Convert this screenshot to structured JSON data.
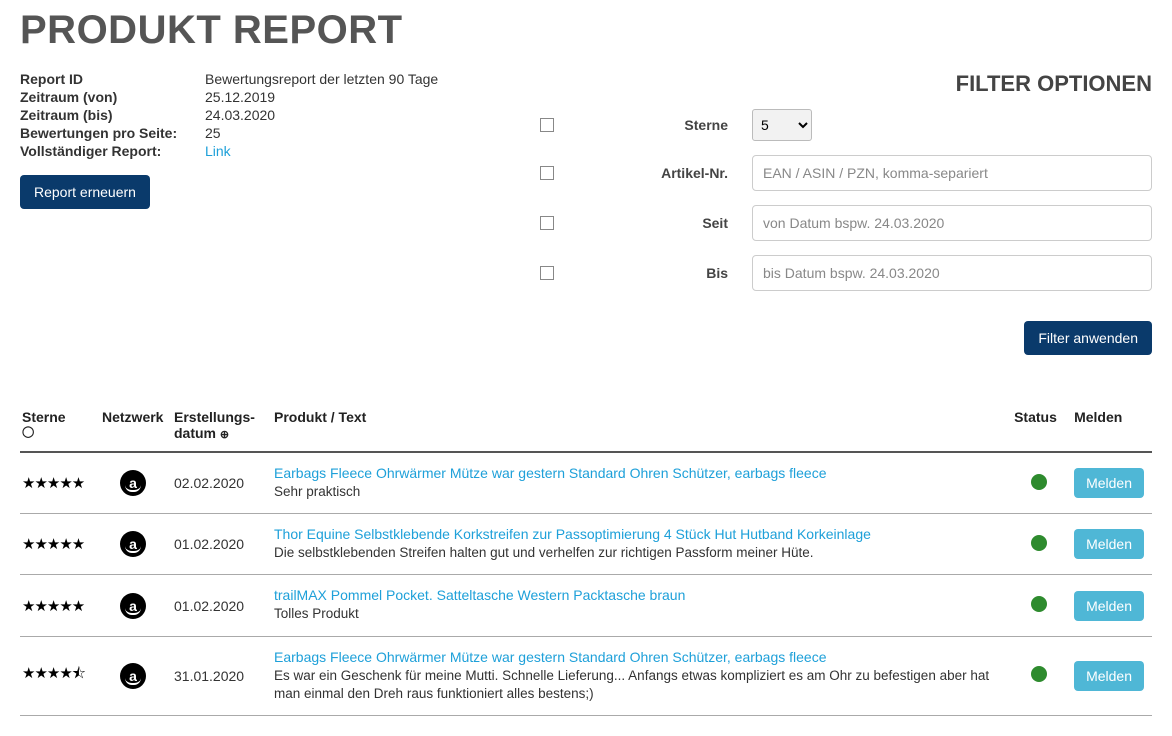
{
  "page_title": "PRODUKT REPORT",
  "meta": {
    "report_id_label": "Report ID",
    "report_id_value": "Bewertungsreport der letzten 90 Tage",
    "from_label": "Zeitraum (von)",
    "from_value": "25.12.2019",
    "to_label": "Zeitraum (bis)",
    "to_value": "24.03.2020",
    "per_page_label": "Bewertungen pro Seite:",
    "per_page_value": "25",
    "full_report_label": "Vollständiger Report:",
    "full_report_link": "Link",
    "refresh_button": "Report erneuern"
  },
  "filter": {
    "title": "FILTER OPTIONEN",
    "stars_label": "Sterne",
    "stars_value": "5",
    "article_label": "Artikel-Nr.",
    "article_placeholder": "EAN / ASIN / PZN, komma-separiert",
    "since_label": "Seit",
    "since_placeholder": "von Datum bspw. 24.03.2020",
    "until_label": "Bis",
    "until_placeholder": "bis Datum bspw. 24.03.2020",
    "apply_button": "Filter anwenden"
  },
  "table": {
    "headers": {
      "stars": "Sterne",
      "network": "Netzwerk",
      "created_l1": "Erstellungs-",
      "created_l2": "datum",
      "product": "Produkt / Text",
      "status": "Status",
      "report": "Melden"
    },
    "rows": [
      {
        "stars": "★★★★★",
        "network": "a",
        "date": "02.02.2020",
        "title": "Earbags Fleece Ohrwärmer Mütze war gestern Standard Ohren Schützer, earbags fleece",
        "text": "Sehr praktisch",
        "status_color": "#2e8b2e",
        "report_btn": "Melden"
      },
      {
        "stars": "★★★★★",
        "network": "a",
        "date": "01.02.2020",
        "title": "Thor Equine Selbstklebende Korkstreifen zur Passoptimierung 4 Stück Hut Hutband Korkeinlage",
        "text": "Die selbstklebenden Streifen halten gut und verhelfen zur richtigen Passform meiner Hüte.",
        "status_color": "#2e8b2e",
        "report_btn": "Melden"
      },
      {
        "stars": "★★★★★",
        "network": "a",
        "date": "01.02.2020",
        "title": "trailMAX Pommel Pocket. Satteltasche Western Packtasche braun",
        "text": "Tolles Produkt",
        "status_color": "#2e8b2e",
        "report_btn": "Melden"
      },
      {
        "stars": "★★★★⯪",
        "network": "a",
        "date": "31.01.2020",
        "title": "Earbags Fleece Ohrwärmer Mütze war gestern Standard Ohren Schützer, earbags fleece",
        "text": "Es war ein Geschenk für meine Mutti. Schnelle Lieferung... Anfangs etwas kompliziert es am Ohr zu befestigen aber hat man einmal den Dreh raus funktioniert alles bestens;)",
        "status_color": "#2e8b2e",
        "report_btn": "Melden"
      }
    ]
  }
}
